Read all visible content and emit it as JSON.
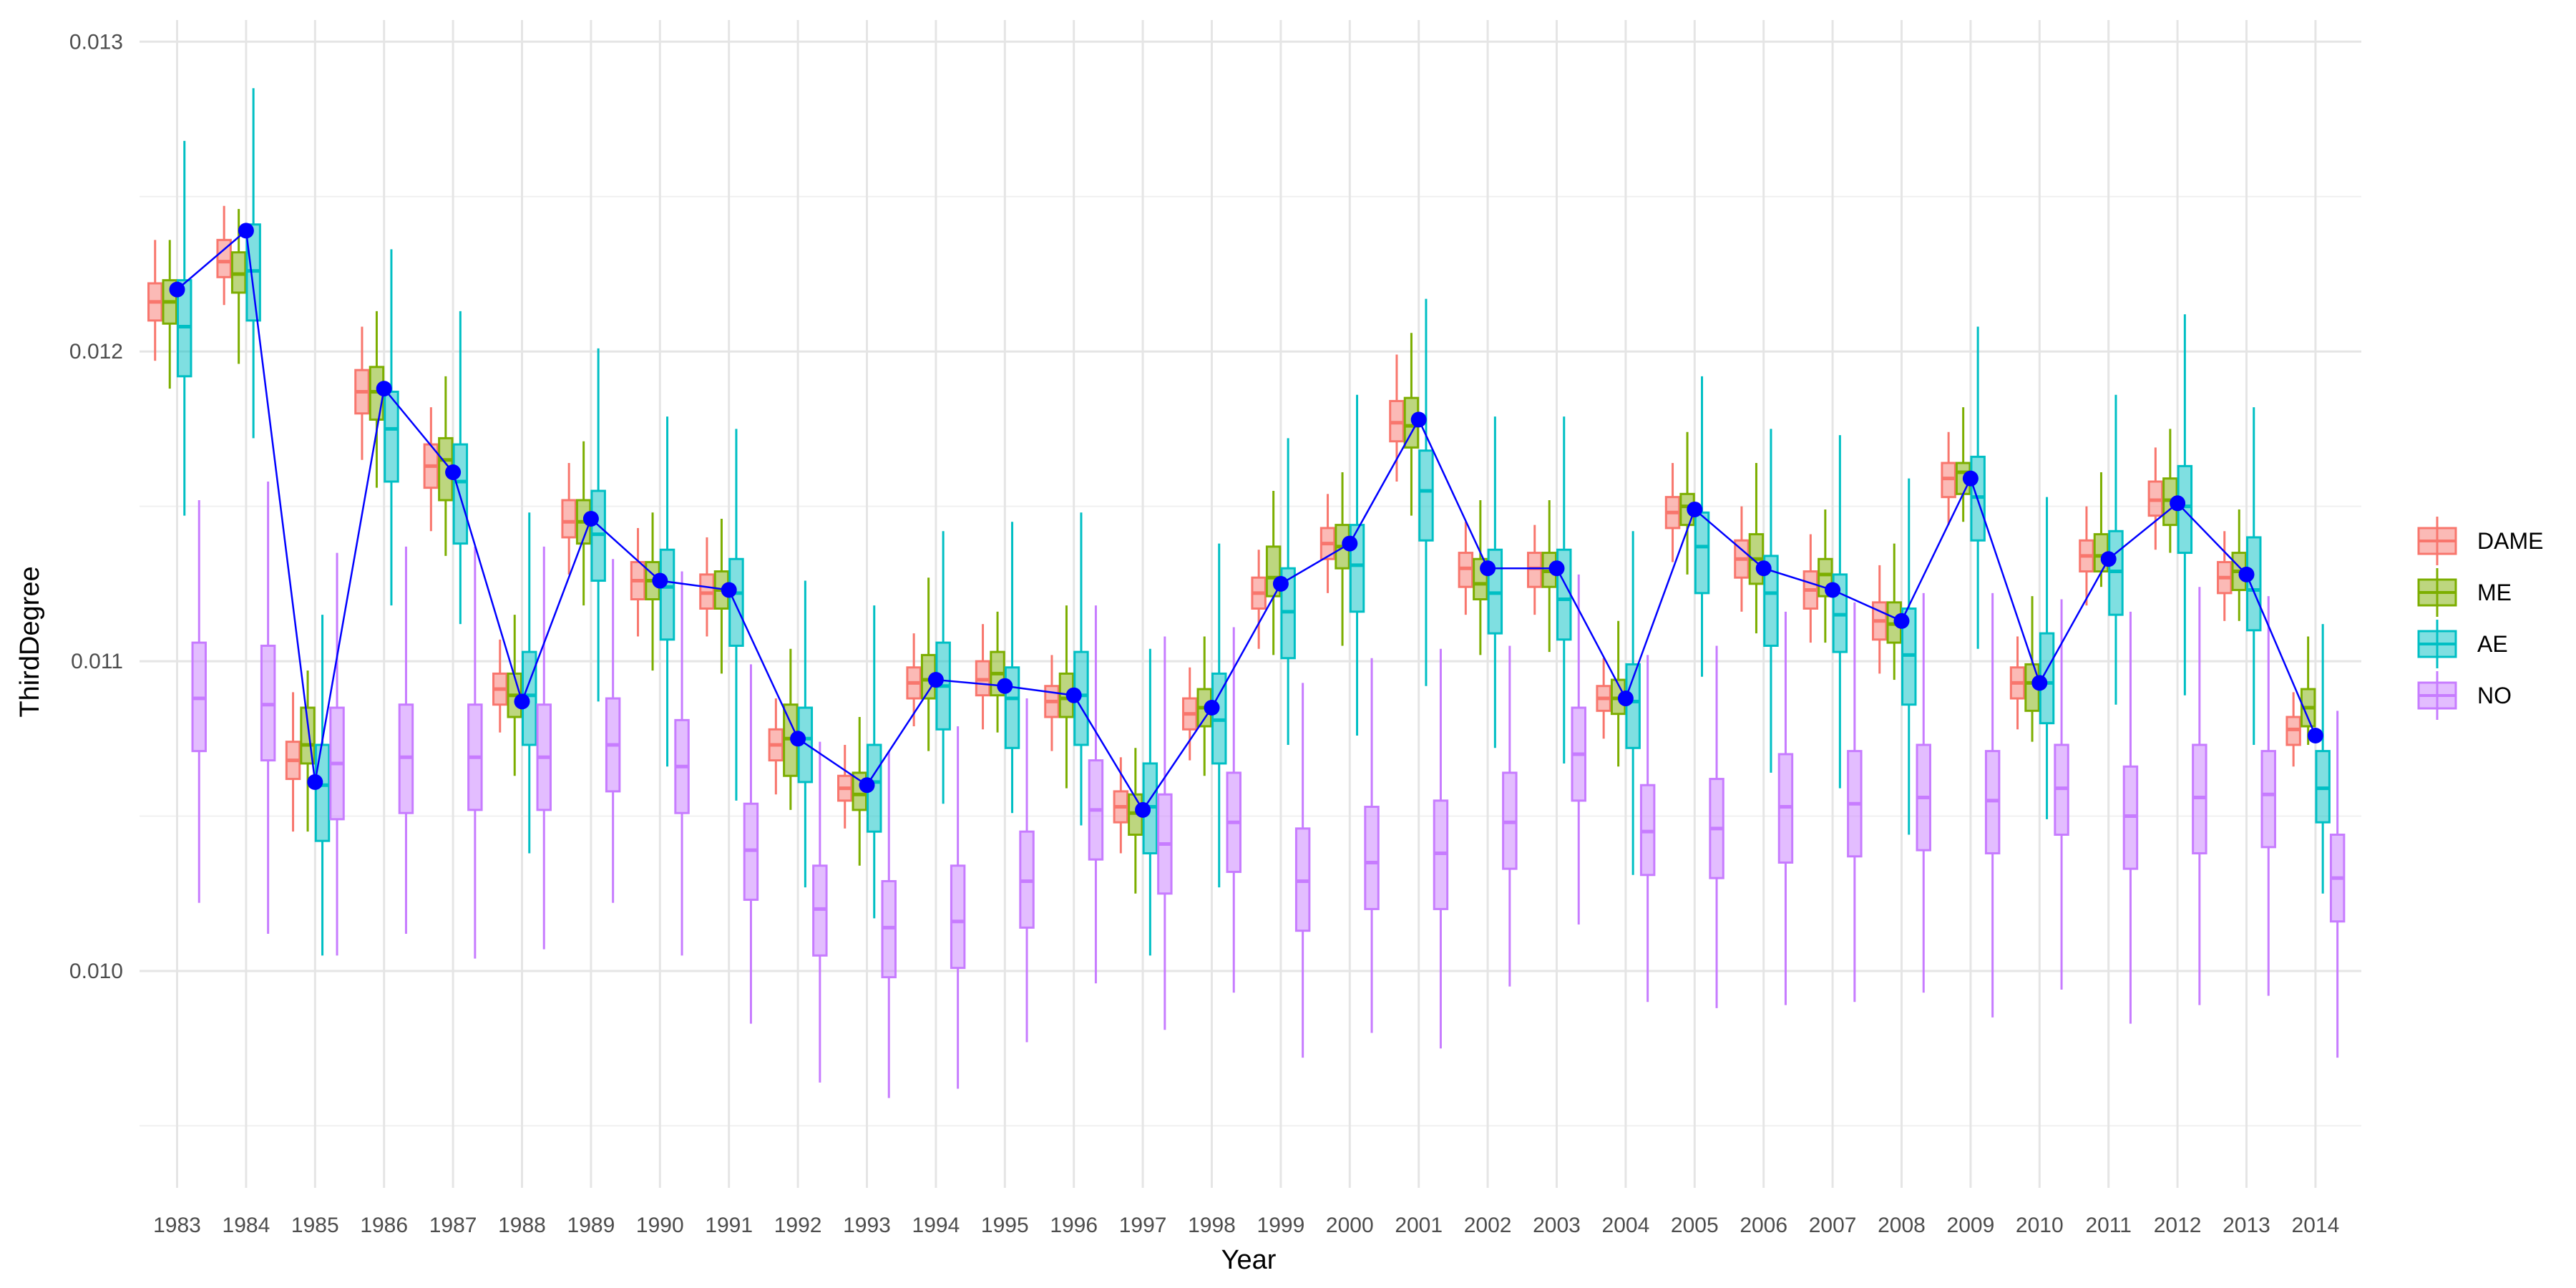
{
  "chart_data": {
    "type": "box",
    "title": "",
    "xlabel": "Year",
    "ylabel": "ThirdDegree",
    "ylim": [
      0.0093,
      0.01307
    ],
    "yticks": [
      0.01,
      0.011,
      0.012,
      0.013
    ],
    "ytick_labels": [
      "0.010",
      "0.011",
      "0.012",
      "0.013"
    ],
    "grid": true,
    "legend_position": "right",
    "categories": [
      "1983",
      "1984",
      "1985",
      "1986",
      "1987",
      "1988",
      "1989",
      "1990",
      "1991",
      "1992",
      "1993",
      "1994",
      "1995",
      "1996",
      "1997",
      "1998",
      "1999",
      "2000",
      "2001",
      "2002",
      "2003",
      "2004",
      "2005",
      "2006",
      "2007",
      "2008",
      "2009",
      "2010",
      "2011",
      "2012",
      "2013",
      "2014"
    ],
    "series": [
      {
        "name": "DAME",
        "color": "#F8766D",
        "boxes": [
          [
            0.01197,
            0.0121,
            0.01216,
            0.01222,
            0.01236
          ],
          [
            0.01215,
            0.01224,
            0.01229,
            0.01236,
            0.01247
          ],
          [
            0.01045,
            0.01062,
            0.01068,
            0.01074,
            0.0109
          ],
          [
            0.01165,
            0.0118,
            0.01187,
            0.01194,
            0.01208
          ],
          [
            0.01142,
            0.01156,
            0.01163,
            0.0117,
            0.01182
          ],
          [
            0.01077,
            0.01086,
            0.01091,
            0.01096,
            0.01107
          ],
          [
            0.01128,
            0.0114,
            0.01145,
            0.01152,
            0.01164
          ],
          [
            0.01108,
            0.0112,
            0.01126,
            0.01132,
            0.01143
          ],
          [
            0.01108,
            0.01117,
            0.01122,
            0.01128,
            0.0114
          ],
          [
            0.01057,
            0.01068,
            0.01073,
            0.01078,
            0.01088
          ],
          [
            0.01046,
            0.01055,
            0.01059,
            0.01063,
            0.01073
          ],
          [
            0.01079,
            0.01088,
            0.01093,
            0.01098,
            0.01109
          ],
          [
            0.01078,
            0.01089,
            0.01094,
            0.011,
            0.01112
          ],
          [
            0.01071,
            0.01082,
            0.01087,
            0.01092,
            0.01102
          ],
          [
            0.01038,
            0.01048,
            0.01053,
            0.01058,
            0.01069
          ],
          [
            0.01068,
            0.01078,
            0.01083,
            0.01088,
            0.01098
          ],
          [
            0.01104,
            0.01117,
            0.01122,
            0.01127,
            0.01136
          ],
          [
            0.01122,
            0.01133,
            0.01138,
            0.01143,
            0.01154
          ],
          [
            0.01158,
            0.01171,
            0.01177,
            0.01184,
            0.01199
          ],
          [
            0.01115,
            0.01124,
            0.0113,
            0.01135,
            0.01145
          ],
          [
            0.01115,
            0.01124,
            0.0113,
            0.01135,
            0.01144
          ],
          [
            0.01075,
            0.01084,
            0.01088,
            0.01092,
            0.01101
          ],
          [
            0.01132,
            0.01143,
            0.01148,
            0.01153,
            0.01164
          ],
          [
            0.01116,
            0.01127,
            0.01133,
            0.01139,
            0.0115
          ],
          [
            0.01106,
            0.01117,
            0.01123,
            0.01129,
            0.01141
          ],
          [
            0.01096,
            0.01107,
            0.01113,
            0.01119,
            0.01131
          ],
          [
            0.01144,
            0.01153,
            0.01159,
            0.01164,
            0.01174
          ],
          [
            0.01078,
            0.01088,
            0.01093,
            0.01098,
            0.01108
          ],
          [
            0.01118,
            0.01129,
            0.01134,
            0.01139,
            0.0115
          ],
          [
            0.01136,
            0.01147,
            0.01152,
            0.01158,
            0.01169
          ],
          [
            0.01113,
            0.01122,
            0.01127,
            0.01132,
            0.01142
          ],
          [
            0.01066,
            0.01073,
            0.01078,
            0.01082,
            0.0109
          ]
        ]
      },
      {
        "name": "ME",
        "color": "#7CAE00",
        "boxes": [
          [
            0.01188,
            0.01209,
            0.01216,
            0.01223,
            0.01236
          ],
          [
            0.01196,
            0.01219,
            0.01225,
            0.01232,
            0.01246
          ],
          [
            0.01045,
            0.01067,
            0.01073,
            0.01085,
            0.01097
          ],
          [
            0.01156,
            0.01178,
            0.01187,
            0.01195,
            0.01213
          ],
          [
            0.01134,
            0.01152,
            0.01165,
            0.01172,
            0.01192
          ],
          [
            0.01063,
            0.01082,
            0.01089,
            0.01096,
            0.01115
          ],
          [
            0.01118,
            0.01138,
            0.01145,
            0.01152,
            0.01171
          ],
          [
            0.01097,
            0.0112,
            0.01126,
            0.01132,
            0.01148
          ],
          [
            0.01096,
            0.01117,
            0.01123,
            0.01129,
            0.01146
          ],
          [
            0.01052,
            0.01063,
            0.01075,
            0.01086,
            0.01104
          ],
          [
            0.01034,
            0.01052,
            0.01057,
            0.01064,
            0.01082
          ],
          [
            0.01071,
            0.01088,
            0.01094,
            0.01102,
            0.01127
          ],
          [
            0.01077,
            0.01089,
            0.01096,
            0.01103,
            0.01116
          ],
          [
            0.01059,
            0.01082,
            0.01088,
            0.01096,
            0.01118
          ],
          [
            0.01025,
            0.01044,
            0.01051,
            0.01057,
            0.01072
          ],
          [
            0.01063,
            0.01079,
            0.01085,
            0.01091,
            0.01108
          ],
          [
            0.01102,
            0.01121,
            0.01127,
            0.01137,
            0.01155
          ],
          [
            0.01105,
            0.0113,
            0.01137,
            0.01144,
            0.01161
          ],
          [
            0.01147,
            0.01169,
            0.01176,
            0.01185,
            0.01206
          ],
          [
            0.01102,
            0.0112,
            0.01125,
            0.01133,
            0.01152
          ],
          [
            0.01103,
            0.01124,
            0.01129,
            0.01135,
            0.01152
          ],
          [
            0.01066,
            0.01083,
            0.01088,
            0.01094,
            0.01113
          ],
          [
            0.01128,
            0.01144,
            0.0115,
            0.01154,
            0.01174
          ],
          [
            0.01109,
            0.01125,
            0.01133,
            0.01141,
            0.01164
          ],
          [
            0.01106,
            0.01121,
            0.01128,
            0.01133,
            0.01149
          ],
          [
            0.01094,
            0.01106,
            0.01112,
            0.01119,
            0.01138
          ],
          [
            0.01145,
            0.01154,
            0.01161,
            0.01164,
            0.01182
          ],
          [
            0.01074,
            0.01084,
            0.01093,
            0.01099,
            0.01121
          ],
          [
            0.01124,
            0.01129,
            0.01134,
            0.01141,
            0.01161
          ],
          [
            0.01135,
            0.01144,
            0.01152,
            0.01159,
            0.01175
          ],
          [
            0.01113,
            0.01123,
            0.01129,
            0.01135,
            0.01149
          ],
          [
            0.01073,
            0.01079,
            0.01085,
            0.01091,
            0.01108
          ]
        ]
      },
      {
        "name": "AE",
        "color": "#00BFC4",
        "boxes": [
          [
            0.01147,
            0.01192,
            0.01208,
            0.01223,
            0.01268
          ],
          [
            0.01172,
            0.0121,
            0.01226,
            0.01241,
            0.01285
          ],
          [
            0.01005,
            0.01042,
            0.0106,
            0.01073,
            0.01115
          ],
          [
            0.01118,
            0.01158,
            0.01175,
            0.01187,
            0.01233
          ],
          [
            0.01112,
            0.01138,
            0.01158,
            0.0117,
            0.01213
          ],
          [
            0.01038,
            0.01073,
            0.01089,
            0.01103,
            0.01148
          ],
          [
            0.01087,
            0.01126,
            0.01141,
            0.01155,
            0.01201
          ],
          [
            0.01066,
            0.01107,
            0.01124,
            0.01136,
            0.01179
          ],
          [
            0.01055,
            0.01105,
            0.01122,
            0.01133,
            0.01175
          ],
          [
            0.01027,
            0.01061,
            0.01075,
            0.01085,
            0.01126
          ],
          [
            0.01017,
            0.01045,
            0.01061,
            0.01073,
            0.01118
          ],
          [
            0.01054,
            0.01078,
            0.01092,
            0.01106,
            0.01142
          ],
          [
            0.01051,
            0.01072,
            0.01088,
            0.01098,
            0.01145
          ],
          [
            0.01047,
            0.01073,
            0.01089,
            0.01103,
            0.01148
          ],
          [
            0.01005,
            0.01038,
            0.01053,
            0.01067,
            0.01104
          ],
          [
            0.01027,
            0.01067,
            0.01081,
            0.01096,
            0.01138
          ],
          [
            0.01073,
            0.01101,
            0.01116,
            0.0113,
            0.01172
          ],
          [
            0.01076,
            0.01116,
            0.01131,
            0.01144,
            0.01186
          ],
          [
            0.01092,
            0.01139,
            0.01155,
            0.01168,
            0.01217
          ],
          [
            0.01072,
            0.01109,
            0.01122,
            0.01136,
            0.01179
          ],
          [
            0.01067,
            0.01107,
            0.0112,
            0.01136,
            0.01179
          ],
          [
            0.01031,
            0.01072,
            0.01087,
            0.01099,
            0.01142
          ],
          [
            0.01095,
            0.01122,
            0.01137,
            0.01148,
            0.01192
          ],
          [
            0.01064,
            0.01105,
            0.01122,
            0.01134,
            0.01175
          ],
          [
            0.01059,
            0.01103,
            0.01115,
            0.01128,
            0.01173
          ],
          [
            0.01044,
            0.01086,
            0.01102,
            0.01117,
            0.01159
          ],
          [
            0.01104,
            0.01139,
            0.01153,
            0.01166,
            0.01208
          ],
          [
            0.01049,
            0.0108,
            0.01093,
            0.01109,
            0.01153
          ],
          [
            0.01086,
            0.01115,
            0.01129,
            0.01142,
            0.01186
          ],
          [
            0.01089,
            0.01135,
            0.0115,
            0.01163,
            0.01212
          ],
          [
            0.01073,
            0.0111,
            0.01123,
            0.0114,
            0.01182
          ],
          [
            0.01025,
            0.01048,
            0.01059,
            0.01071,
            0.01112
          ]
        ]
      },
      {
        "name": "NO",
        "color": "#C77CFF",
        "boxes": [
          [
            0.01022,
            0.01071,
            0.01088,
            0.01106,
            0.01152
          ],
          [
            0.01012,
            0.01068,
            0.01086,
            0.01105,
            0.01158
          ],
          [
            0.01005,
            0.01049,
            0.01067,
            0.01085,
            0.01135
          ],
          [
            0.01012,
            0.01051,
            0.01069,
            0.01086,
            0.01137
          ],
          [
            0.01004,
            0.01052,
            0.01069,
            0.01086,
            0.01137
          ],
          [
            0.01007,
            0.01052,
            0.01069,
            0.01086,
            0.01137
          ],
          [
            0.01022,
            0.01058,
            0.01073,
            0.01088,
            0.01133
          ],
          [
            0.01005,
            0.01051,
            0.01066,
            0.01081,
            0.01129
          ],
          [
            0.00983,
            0.01023,
            0.01039,
            0.01054,
            0.01099
          ],
          [
            0.00964,
            0.01005,
            0.0102,
            0.01034,
            0.01074
          ],
          [
            0.00959,
            0.00998,
            0.01014,
            0.01029,
            0.01071
          ],
          [
            0.00962,
            0.01001,
            0.01016,
            0.01034,
            0.01079
          ],
          [
            0.00977,
            0.01014,
            0.01029,
            0.01045,
            0.01088
          ],
          [
            0.00996,
            0.01036,
            0.01052,
            0.01068,
            0.01118
          ],
          [
            0.00981,
            0.01025,
            0.01041,
            0.01057,
            0.01108
          ],
          [
            0.00993,
            0.01032,
            0.01048,
            0.01064,
            0.01111
          ],
          [
            0.00972,
            0.01013,
            0.01029,
            0.01046,
            0.01093
          ],
          [
            0.0098,
            0.0102,
            0.01035,
            0.01053,
            0.01101
          ],
          [
            0.00975,
            0.0102,
            0.01038,
            0.01055,
            0.01104
          ],
          [
            0.00995,
            0.01033,
            0.01048,
            0.01064,
            0.01105
          ],
          [
            0.01015,
            0.01055,
            0.0107,
            0.01085,
            0.01128
          ],
          [
            0.0099,
            0.01031,
            0.01045,
            0.0106,
            0.01102
          ],
          [
            0.00988,
            0.0103,
            0.01046,
            0.01062,
            0.01105
          ],
          [
            0.00989,
            0.01035,
            0.01053,
            0.0107,
            0.01116
          ],
          [
            0.0099,
            0.01037,
            0.01054,
            0.01071,
            0.01119
          ],
          [
            0.00993,
            0.01039,
            0.01056,
            0.01073,
            0.01122
          ],
          [
            0.00985,
            0.01038,
            0.01055,
            0.01071,
            0.01122
          ],
          [
            0.00994,
            0.01044,
            0.01059,
            0.01073,
            0.0112
          ],
          [
            0.00983,
            0.01033,
            0.0105,
            0.01066,
            0.01116
          ],
          [
            0.00989,
            0.01038,
            0.01056,
            0.01073,
            0.01124
          ],
          [
            0.00992,
            0.0104,
            0.01057,
            0.01071,
            0.01121
          ],
          [
            0.00972,
            0.01016,
            0.0103,
            0.01044,
            0.01084
          ]
        ]
      }
    ],
    "overlay_line": {
      "color": "#0000FF",
      "values": [
        0.0122,
        0.01239,
        0.01061,
        0.01188,
        0.01161,
        0.01087,
        0.01146,
        0.01126,
        0.01123,
        0.01075,
        0.0106,
        0.01094,
        0.01092,
        0.01089,
        0.01052,
        0.01085,
        0.01125,
        0.01138,
        0.01178,
        0.0113,
        0.0113,
        0.01088,
        0.01149,
        0.0113,
        0.01123,
        0.01113,
        0.01159,
        0.01093,
        0.01133,
        0.01151,
        0.01128,
        0.01076
      ]
    }
  }
}
